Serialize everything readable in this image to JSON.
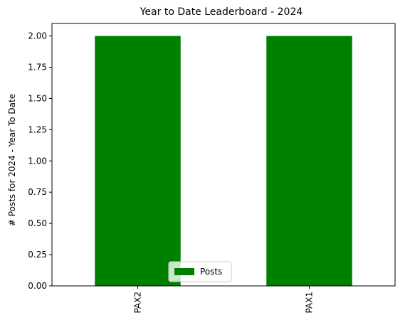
{
  "chart_data": {
    "type": "bar",
    "title": "Year to Date Leaderboard - 2024",
    "xlabel": "",
    "ylabel": "# Posts for 2024 - Year To Date",
    "categories": [
      "PAX2",
      "PAX1"
    ],
    "series": [
      {
        "name": "Posts",
        "values": [
          2,
          2
        ],
        "color": "#008000"
      }
    ],
    "ylim": [
      0,
      2.1
    ],
    "yticks": [
      "0.00",
      "0.25",
      "0.50",
      "0.75",
      "1.00",
      "1.25",
      "1.50",
      "1.75",
      "2.00"
    ],
    "ytick_values": [
      0,
      0.25,
      0.5,
      0.75,
      1.0,
      1.25,
      1.5,
      1.75,
      2.0
    ],
    "grid": false,
    "legend_position": "lower center"
  }
}
